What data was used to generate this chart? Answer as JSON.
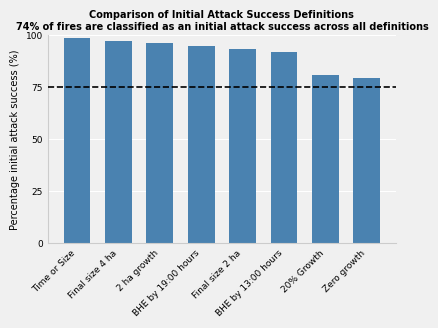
{
  "categories": [
    "Time or Size",
    "Final size 4 ha",
    "2 ha growth",
    "BHE by 19:00 hours",
    "Final size 2 ha",
    "BHE by 13:00 hours",
    "20% Growth",
    "Zero growth"
  ],
  "values": [
    98.8,
    97.0,
    96.0,
    94.8,
    93.5,
    92.0,
    81.0,
    79.5
  ],
  "bar_color": "#4a82b0",
  "dashed_line_y": 75,
  "title_line1": "Comparison of Initial Attack Success Definitions",
  "title_line2": "74% of fires are classified as an initial attack success across all definitions",
  "ylabel": "Percentage initial attack success (%)",
  "ylim": [
    0,
    100
  ],
  "yticks": [
    0,
    25,
    50,
    75,
    100
  ],
  "background_color": "#f0f0f0",
  "grid_color": "#ffffff",
  "title_fontsize": 7.0,
  "ylabel_fontsize": 7.0,
  "tick_fontsize": 6.5,
  "bar_width": 0.65
}
